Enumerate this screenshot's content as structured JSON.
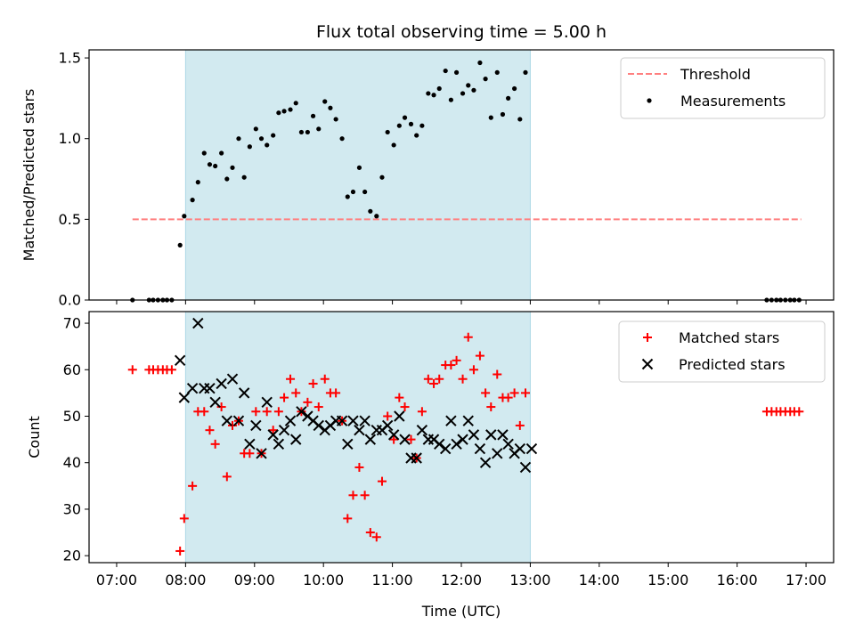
{
  "chart_data": {
    "type": "scatter",
    "title": "Flux total observing time = 5.00 h",
    "xlabel": "Time (UTC)",
    "x_ticks": [
      "07:00",
      "08:00",
      "09:00",
      "10:00",
      "11:00",
      "12:00",
      "13:00",
      "14:00",
      "15:00",
      "16:00",
      "17:00"
    ],
    "x_range_hours": [
      6.6,
      17.4
    ],
    "observing_window_hours": [
      8.0,
      13.0
    ],
    "colors": {
      "window": "#d2eaf0",
      "threshold": "#ff7f7f",
      "measurement": "#000000",
      "matched": "#ff0000",
      "predicted": "#000000"
    },
    "panels": [
      {
        "ylabel": "Matched/Predicted stars",
        "ylim": [
          0,
          1.55
        ],
        "y_ticks": [
          "0.0",
          "0.5",
          "1.0",
          "1.5"
        ],
        "y_tick_values": [
          0,
          0.5,
          1.0,
          1.5
        ],
        "legend": [
          {
            "label": "Threshold",
            "kind": "dash"
          },
          {
            "label": "Measurements",
            "kind": "dot"
          }
        ],
        "threshold": {
          "value": 0.5,
          "x_start": 7.23,
          "x_end": 16.93
        },
        "series": [
          {
            "name": "Measurements",
            "x": [
              7.23,
              7.47,
              7.53,
              7.6,
              7.67,
              7.73,
              7.8,
              7.92,
              7.98,
              8.1,
              8.18,
              8.27,
              8.35,
              8.43,
              8.52,
              8.6,
              8.68,
              8.77,
              8.85,
              8.93,
              9.02,
              9.1,
              9.18,
              9.27,
              9.35,
              9.43,
              9.52,
              9.6,
              9.68,
              9.77,
              9.85,
              9.93,
              10.02,
              10.1,
              10.18,
              10.27,
              10.35,
              10.43,
              10.52,
              10.6,
              10.68,
              10.77,
              10.85,
              10.93,
              11.02,
              11.1,
              11.18,
              11.27,
              11.35,
              11.43,
              11.52,
              11.6,
              11.68,
              11.77,
              11.85,
              11.93,
              12.02,
              12.1,
              12.18,
              12.27,
              12.35,
              12.43,
              12.52,
              12.6,
              12.68,
              12.77,
              12.85,
              12.93,
              16.43,
              16.5,
              16.57,
              16.63,
              16.7,
              16.77,
              16.83,
              16.9
            ],
            "y": [
              0,
              0,
              0,
              0,
              0,
              0,
              0,
              0.34,
              0.52,
              0.62,
              0.73,
              0.91,
              0.84,
              0.83,
              0.91,
              0.75,
              0.82,
              1.0,
              0.76,
              0.95,
              1.06,
              1.0,
              0.96,
              1.02,
              1.16,
              1.17,
              1.18,
              1.22,
              1.04,
              1.04,
              1.14,
              1.06,
              1.23,
              1.19,
              1.12,
              1.0,
              0.64,
              0.67,
              0.82,
              0.67,
              0.55,
              0.52,
              0.76,
              1.04,
              0.96,
              1.08,
              1.13,
              1.09,
              1.02,
              1.08,
              1.28,
              1.27,
              1.31,
              1.42,
              1.24,
              1.41,
              1.28,
              1.33,
              1.3,
              1.47,
              1.37,
              1.13,
              1.41,
              1.15,
              1.25,
              1.31,
              1.12,
              1.41,
              0,
              0,
              0,
              0,
              0,
              0,
              0,
              0
            ],
            "style": "dot"
          }
        ]
      },
      {
        "ylabel": "Count",
        "ylim": [
          18.5,
          72.5
        ],
        "y_ticks": [
          "20",
          "30",
          "40",
          "50",
          "60",
          "70"
        ],
        "y_tick_values": [
          20,
          30,
          40,
          50,
          60,
          70
        ],
        "legend": [
          {
            "label": "Matched stars",
            "kind": "plus"
          },
          {
            "label": "Predicted stars",
            "kind": "x"
          }
        ],
        "series": [
          {
            "name": "Matched stars",
            "style": "plus",
            "x": [
              7.23,
              7.47,
              7.53,
              7.6,
              7.67,
              7.73,
              7.8,
              7.92,
              7.98,
              8.1,
              8.18,
              8.27,
              8.35,
              8.43,
              8.52,
              8.6,
              8.68,
              8.77,
              8.85,
              8.93,
              9.02,
              9.1,
              9.18,
              9.27,
              9.35,
              9.43,
              9.52,
              9.6,
              9.68,
              9.77,
              9.85,
              9.93,
              10.02,
              10.1,
              10.18,
              10.27,
              10.35,
              10.43,
              10.52,
              10.6,
              10.68,
              10.77,
              10.85,
              10.93,
              11.02,
              11.1,
              11.18,
              11.27,
              11.35,
              11.43,
              11.52,
              11.6,
              11.68,
              11.77,
              11.85,
              11.93,
              12.02,
              12.1,
              12.18,
              12.27,
              12.35,
              12.43,
              12.52,
              12.6,
              12.68,
              12.77,
              12.85,
              12.93,
              16.43,
              16.5,
              16.57,
              16.63,
              16.7,
              16.77,
              16.83,
              16.9
            ],
            "y": [
              60,
              60,
              60,
              60,
              60,
              60,
              60,
              21,
              28,
              35,
              51,
              51,
              47,
              44,
              52,
              37,
              48,
              49,
              42,
              42,
              51,
              42,
              51,
              47,
              51,
              54,
              58,
              55,
              51,
              53,
              57,
              52,
              58,
              55,
              55,
              49,
              28,
              33,
              39,
              33,
              25,
              24,
              36,
              50,
              45,
              54,
              52,
              45,
              41,
              51,
              58,
              57,
              58,
              61,
              61,
              62,
              58,
              67,
              60,
              63,
              55,
              52,
              59,
              54,
              54,
              55,
              48,
              55,
              51,
              51,
              51,
              51,
              51,
              51,
              51,
              51
            ]
          },
          {
            "name": "Predicted stars",
            "style": "x",
            "x": [
              7.92,
              7.98,
              8.1,
              8.18,
              8.27,
              8.35,
              8.43,
              8.52,
              8.6,
              8.68,
              8.77,
              8.85,
              8.93,
              9.02,
              9.1,
              9.18,
              9.27,
              9.35,
              9.43,
              9.52,
              9.6,
              9.68,
              9.77,
              9.85,
              9.93,
              10.02,
              10.1,
              10.18,
              10.27,
              10.35,
              10.43,
              10.52,
              10.6,
              10.68,
              10.77,
              10.85,
              10.93,
              11.02,
              11.1,
              11.18,
              11.27,
              11.35,
              11.43,
              11.52,
              11.6,
              11.68,
              11.77,
              11.85,
              11.93,
              12.02,
              12.1,
              12.18,
              12.27,
              12.35,
              12.43,
              12.52,
              12.6,
              12.68,
              12.77,
              12.85,
              12.93,
              13.02
            ],
            "y": [
              62,
              54,
              56,
              70,
              56,
              56,
              53,
              57,
              49,
              58,
              49,
              55,
              44,
              48,
              42,
              53,
              46,
              44,
              47,
              49,
              45,
              51,
              50,
              49,
              48,
              47,
              48,
              49,
              49,
              44,
              49,
              47,
              49,
              45,
              47,
              47,
              48,
              46,
              50,
              45,
              41,
              41,
              47,
              45,
              45,
              44,
              43,
              49,
              44,
              45,
              49,
              46,
              43,
              40,
              46,
              42,
              46,
              44,
              42,
              43,
              39,
              43
            ]
          }
        ]
      }
    ]
  }
}
